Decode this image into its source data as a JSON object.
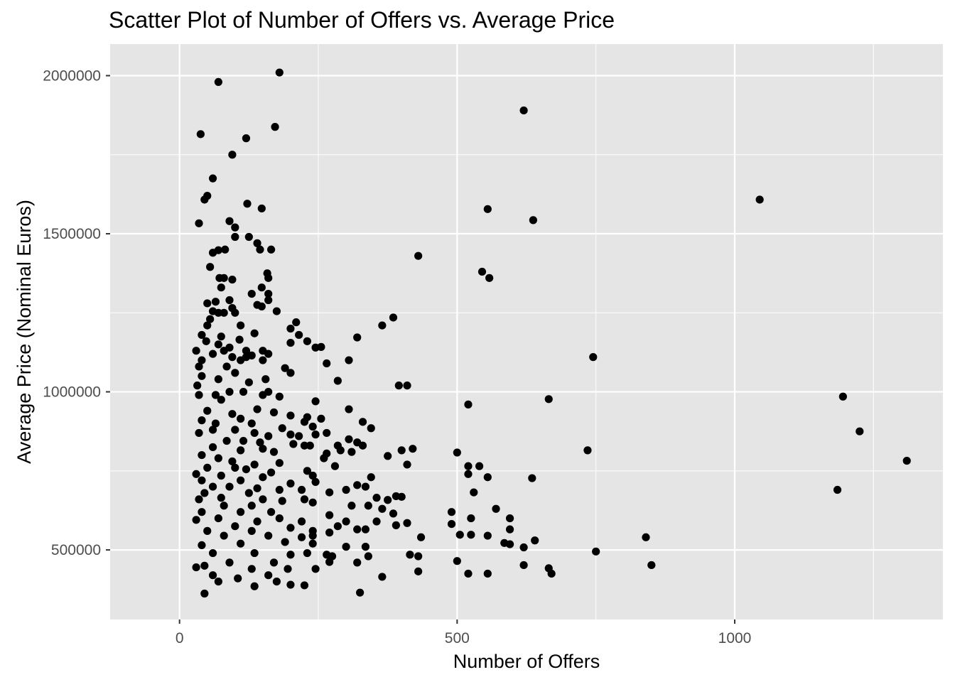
{
  "chart_data": {
    "type": "scatter",
    "title": "Scatter Plot of Number of Offers vs. Average Price",
    "xlabel": "Number of Offers",
    "ylabel": "Average Price (Nominal Euros)",
    "xlim": [
      -125,
      1375
    ],
    "ylim": [
      280000,
      2100000
    ],
    "x_ticks": [
      0,
      500,
      1000
    ],
    "x_minor": [
      250,
      750,
      1250
    ],
    "y_ticks": [
      500000,
      1000000,
      1500000,
      2000000
    ],
    "y_minor": [
      750000,
      1250000,
      1750000
    ],
    "grid": true,
    "panel_color": "#e5e5e5",
    "grid_color": "#ffffff",
    "point_color": "#000000",
    "points": [
      [
        180,
        2010000
      ],
      [
        70,
        1980000
      ],
      [
        620,
        1890000
      ],
      [
        38,
        1815000
      ],
      [
        172,
        1838000
      ],
      [
        120,
        1802000
      ],
      [
        95,
        1750000
      ],
      [
        60,
        1675000
      ],
      [
        50,
        1620000
      ],
      [
        45,
        1608000
      ],
      [
        1045,
        1608000
      ],
      [
        122,
        1595000
      ],
      [
        148,
        1580000
      ],
      [
        555,
        1578000
      ],
      [
        637,
        1543000
      ],
      [
        35,
        1533000
      ],
      [
        125,
        1490000
      ],
      [
        100,
        1520000
      ],
      [
        90,
        1540000
      ],
      [
        100,
        1490000
      ],
      [
        140,
        1470000
      ],
      [
        145,
        1450000
      ],
      [
        165,
        1450000
      ],
      [
        82,
        1450000
      ],
      [
        70,
        1448000
      ],
      [
        60,
        1440000
      ],
      [
        430,
        1430000
      ],
      [
        545,
        1380000
      ],
      [
        558,
        1360000
      ],
      [
        55,
        1395000
      ],
      [
        80,
        1360000
      ],
      [
        72,
        1360000
      ],
      [
        95,
        1355000
      ],
      [
        75,
        1330000
      ],
      [
        158,
        1375000
      ],
      [
        160,
        1360000
      ],
      [
        130,
        1310000
      ],
      [
        160,
        1310000
      ],
      [
        148,
        1330000
      ],
      [
        90,
        1290000
      ],
      [
        65,
        1285000
      ],
      [
        50,
        1280000
      ],
      [
        160,
        1290000
      ],
      [
        140,
        1275000
      ],
      [
        148,
        1270000
      ],
      [
        95,
        1265000
      ],
      [
        60,
        1255000
      ],
      [
        70,
        1250000
      ],
      [
        80,
        1250000
      ],
      [
        100,
        1250000
      ],
      [
        55,
        1230000
      ],
      [
        175,
        1255000
      ],
      [
        210,
        1220000
      ],
      [
        385,
        1235000
      ],
      [
        365,
        1210000
      ],
      [
        50,
        1210000
      ],
      [
        110,
        1210000
      ],
      [
        40,
        1180000
      ],
      [
        75,
        1175000
      ],
      [
        200,
        1200000
      ],
      [
        215,
        1180000
      ],
      [
        320,
        1172000
      ],
      [
        48,
        1160000
      ],
      [
        70,
        1150000
      ],
      [
        135,
        1185000
      ],
      [
        230,
        1160000
      ],
      [
        245,
        1140000
      ],
      [
        255,
        1142000
      ],
      [
        200,
        1155000
      ],
      [
        108,
        1165000
      ],
      [
        90,
        1140000
      ],
      [
        80,
        1130000
      ],
      [
        30,
        1130000
      ],
      [
        120,
        1130000
      ],
      [
        150,
        1130000
      ],
      [
        160,
        1120000
      ],
      [
        745,
        1110000
      ],
      [
        95,
        1110000
      ],
      [
        120,
        1110000
      ],
      [
        40,
        1100000
      ],
      [
        60,
        1120000
      ],
      [
        110,
        1100000
      ],
      [
        130,
        1115000
      ],
      [
        150,
        1100000
      ],
      [
        305,
        1100000
      ],
      [
        265,
        1090000
      ],
      [
        35,
        1080000
      ],
      [
        85,
        1080000
      ],
      [
        190,
        1075000
      ],
      [
        200,
        1060000
      ],
      [
        40,
        1050000
      ],
      [
        100,
        1060000
      ],
      [
        70,
        1040000
      ],
      [
        125,
        1030000
      ],
      [
        155,
        1040000
      ],
      [
        285,
        1035000
      ],
      [
        395,
        1020000
      ],
      [
        410,
        1020000
      ],
      [
        32,
        1020000
      ],
      [
        90,
        1000000
      ],
      [
        115,
        1000000
      ],
      [
        160,
        1000000
      ],
      [
        180,
        985000
      ],
      [
        65,
        990000
      ],
      [
        150,
        990000
      ],
      [
        35,
        990000
      ],
      [
        1195,
        985000
      ],
      [
        665,
        977000
      ],
      [
        75,
        975000
      ],
      [
        245,
        970000
      ],
      [
        520,
        960000
      ],
      [
        140,
        945000
      ],
      [
        305,
        945000
      ],
      [
        50,
        940000
      ],
      [
        95,
        930000
      ],
      [
        170,
        935000
      ],
      [
        200,
        925000
      ],
      [
        230,
        920000
      ],
      [
        255,
        915000
      ],
      [
        110,
        915000
      ],
      [
        40,
        910000
      ],
      [
        65,
        900000
      ],
      [
        130,
        900000
      ],
      [
        225,
        905000
      ],
      [
        330,
        905000
      ],
      [
        240,
        890000
      ],
      [
        185,
        885000
      ],
      [
        345,
        885000
      ],
      [
        60,
        880000
      ],
      [
        100,
        880000
      ],
      [
        135,
        870000
      ],
      [
        160,
        860000
      ],
      [
        200,
        865000
      ],
      [
        215,
        860000
      ],
      [
        245,
        865000
      ],
      [
        265,
        870000
      ],
      [
        35,
        870000
      ],
      [
        1225,
        875000
      ],
      [
        305,
        850000
      ],
      [
        320,
        840000
      ],
      [
        85,
        845000
      ],
      [
        115,
        845000
      ],
      [
        145,
        840000
      ],
      [
        205,
        835000
      ],
      [
        225,
        830000
      ],
      [
        235,
        830000
      ],
      [
        285,
        830000
      ],
      [
        330,
        830000
      ],
      [
        420,
        820000
      ],
      [
        400,
        815000
      ],
      [
        735,
        815000
      ],
      [
        500,
        808000
      ],
      [
        60,
        825000
      ],
      [
        110,
        815000
      ],
      [
        150,
        820000
      ],
      [
        170,
        810000
      ],
      [
        265,
        805000
      ],
      [
        310,
        810000
      ],
      [
        290,
        815000
      ],
      [
        375,
        797000
      ],
      [
        40,
        800000
      ],
      [
        260,
        790000
      ],
      [
        70,
        790000
      ],
      [
        95,
        780000
      ],
      [
        135,
        770000
      ],
      [
        180,
        775000
      ],
      [
        1310,
        782000
      ],
      [
        520,
        765000
      ],
      [
        540,
        765000
      ],
      [
        410,
        770000
      ],
      [
        280,
        765000
      ],
      [
        50,
        760000
      ],
      [
        100,
        760000
      ],
      [
        120,
        755000
      ],
      [
        230,
        750000
      ],
      [
        165,
        745000
      ],
      [
        520,
        740000
      ],
      [
        30,
        740000
      ],
      [
        75,
        735000
      ],
      [
        150,
        730000
      ],
      [
        240,
        735000
      ],
      [
        345,
        730000
      ],
      [
        555,
        730000
      ],
      [
        635,
        727000
      ],
      [
        40,
        720000
      ],
      [
        110,
        720000
      ],
      [
        200,
        710000
      ],
      [
        245,
        715000
      ],
      [
        320,
        705000
      ],
      [
        335,
        700000
      ],
      [
        60,
        700000
      ],
      [
        90,
        700000
      ],
      [
        140,
        695000
      ],
      [
        180,
        690000
      ],
      [
        220,
        690000
      ],
      [
        300,
        690000
      ],
      [
        1185,
        690000
      ],
      [
        530,
        682000
      ],
      [
        45,
        680000
      ],
      [
        125,
        680000
      ],
      [
        270,
        682000
      ],
      [
        355,
        665000
      ],
      [
        375,
        658000
      ],
      [
        390,
        670000
      ],
      [
        400,
        668000
      ],
      [
        35,
        660000
      ],
      [
        75,
        665000
      ],
      [
        150,
        660000
      ],
      [
        185,
        655000
      ],
      [
        225,
        660000
      ],
      [
        240,
        650000
      ],
      [
        310,
        640000
      ],
      [
        340,
        640000
      ],
      [
        570,
        630000
      ],
      [
        365,
        630000
      ],
      [
        80,
        640000
      ],
      [
        130,
        640000
      ],
      [
        490,
        620000
      ],
      [
        385,
        615000
      ],
      [
        270,
        610000
      ],
      [
        165,
        620000
      ],
      [
        110,
        620000
      ],
      [
        40,
        620000
      ],
      [
        525,
        600000
      ],
      [
        595,
        600000
      ],
      [
        355,
        590000
      ],
      [
        410,
        585000
      ],
      [
        300,
        590000
      ],
      [
        220,
        590000
      ],
      [
        180,
        600000
      ],
      [
        140,
        590000
      ],
      [
        70,
        600000
      ],
      [
        30,
        595000
      ],
      [
        490,
        582000
      ],
      [
        390,
        578000
      ],
      [
        285,
        575000
      ],
      [
        320,
        565000
      ],
      [
        335,
        565000
      ],
      [
        240,
        560000
      ],
      [
        200,
        570000
      ],
      [
        130,
        560000
      ],
      [
        100,
        575000
      ],
      [
        50,
        560000
      ],
      [
        595,
        565000
      ],
      [
        505,
        548000
      ],
      [
        525,
        548000
      ],
      [
        555,
        545000
      ],
      [
        435,
        540000
      ],
      [
        840,
        540000
      ],
      [
        240,
        545000
      ],
      [
        270,
        555000
      ],
      [
        220,
        540000
      ],
      [
        160,
        545000
      ],
      [
        80,
        545000
      ],
      [
        585,
        522000
      ],
      [
        595,
        518000
      ],
      [
        640,
        530000
      ],
      [
        620,
        508000
      ],
      [
        300,
        510000
      ],
      [
        335,
        510000
      ],
      [
        240,
        520000
      ],
      [
        190,
        525000
      ],
      [
        110,
        520000
      ],
      [
        40,
        515000
      ],
      [
        750,
        495000
      ],
      [
        415,
        485000
      ],
      [
        430,
        480000
      ],
      [
        340,
        480000
      ],
      [
        230,
        490000
      ],
      [
        265,
        485000
      ],
      [
        275,
        480000
      ],
      [
        200,
        485000
      ],
      [
        135,
        490000
      ],
      [
        60,
        490000
      ],
      [
        500,
        465000
      ],
      [
        620,
        452000
      ],
      [
        850,
        452000
      ],
      [
        270,
        462000
      ],
      [
        320,
        460000
      ],
      [
        170,
        460000
      ],
      [
        90,
        460000
      ],
      [
        45,
        450000
      ],
      [
        665,
        442000
      ],
      [
        195,
        440000
      ],
      [
        245,
        440000
      ],
      [
        130,
        440000
      ],
      [
        30,
        445000
      ],
      [
        430,
        432000
      ],
      [
        520,
        425000
      ],
      [
        555,
        425000
      ],
      [
        670,
        425000
      ],
      [
        365,
        415000
      ],
      [
        160,
        420000
      ],
      [
        105,
        410000
      ],
      [
        60,
        420000
      ],
      [
        175,
        400000
      ],
      [
        70,
        400000
      ],
      [
        200,
        390000
      ],
      [
        225,
        388000
      ],
      [
        135,
        385000
      ],
      [
        325,
        365000
      ],
      [
        45,
        362000
      ]
    ]
  }
}
